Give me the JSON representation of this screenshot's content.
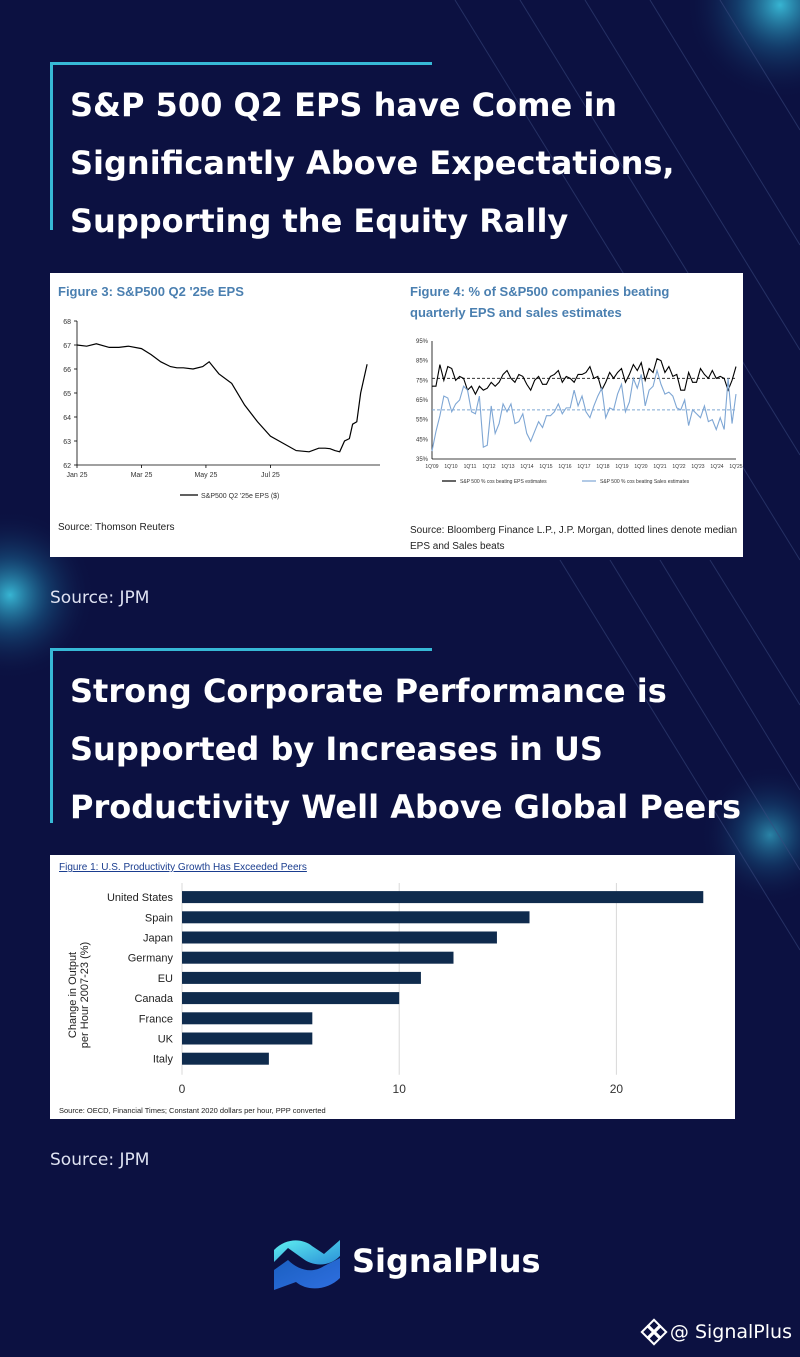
{
  "heading1": {
    "lines": [
      "S&P 500 Q2 EPS have Come in",
      "Significantly Above Expectations,",
      "Supporting the Equity Rally"
    ]
  },
  "heading2": {
    "lines": [
      "Strong Corporate Performance is",
      "Supported by Increases in US",
      "Productivity Well Above Global Peers"
    ]
  },
  "source_note_1": "Source: JPM",
  "source_note_2": "Source: JPM",
  "brand": {
    "name": "SignalPlus",
    "watermark": "@ SignalPlus",
    "accent_color": "#37b9d6",
    "icon": "signalplus-logo-icon",
    "watermark_icon": "binance-square-icon"
  },
  "chart_data": [
    {
      "type": "line",
      "title": "Figure 3: S&P500 Q2 '25e EPS",
      "x_ticks": [
        "Jan 25",
        "Mar 25",
        "May 25",
        "Jul 25"
      ],
      "ylim": [
        62,
        68
      ],
      "y_ticks": [
        "62",
        "63",
        "64",
        "65",
        "66",
        "67",
        "68"
      ],
      "series": [
        {
          "name": "S&P500 Q2 '25e EPS ($)",
          "color": "#000000",
          "x": [
            0,
            0.3,
            0.6,
            1.0,
            1.3,
            1.6,
            2.0,
            2.3,
            2.6,
            2.9,
            3.1,
            3.3,
            3.6,
            3.9,
            4.1,
            4.4,
            4.8,
            5.2,
            5.6,
            6.0,
            6.4,
            6.8,
            7.2,
            7.5,
            7.7,
            7.85,
            8.0,
            8.15,
            8.3,
            8.45,
            8.55,
            8.68,
            8.8,
            9.0
          ],
          "values": [
            67.0,
            66.95,
            67.05,
            66.9,
            66.9,
            66.95,
            66.85,
            66.6,
            66.3,
            66.1,
            66.05,
            66.05,
            66.0,
            66.1,
            66.3,
            65.8,
            65.4,
            64.5,
            63.8,
            63.2,
            62.9,
            62.6,
            62.55,
            62.7,
            62.7,
            62.68,
            62.6,
            62.55,
            63.0,
            63.1,
            63.7,
            63.8,
            65.0,
            66.2
          ]
        }
      ],
      "source": "Source: Thomson Reuters"
    },
    {
      "type": "line",
      "title": "Figure 4: % of S&P500 companies beating quarterly EPS and sales estimates",
      "title_lines": [
        "Figure 4: % of S&P500 companies beating",
        "quarterly EPS and sales estimates"
      ],
      "x_ticks": [
        "1Q'09",
        "1Q'10",
        "1Q'11",
        "1Q'12",
        "1Q'13",
        "1Q'14",
        "1Q'15",
        "1Q'16",
        "1Q'17",
        "1Q'18",
        "1Q'19",
        "1Q'20",
        "1Q'21",
        "1Q'22",
        "1Q'23",
        "1Q'24",
        "1Q'25"
      ],
      "ylim": [
        35,
        95
      ],
      "y_ticks": [
        "35%",
        "45%",
        "55%",
        "65%",
        "75%",
        "85%",
        "95%"
      ],
      "series": [
        {
          "name": "S&P 500 % cos beating EPS estimates",
          "color": "#000000",
          "values": [
            72,
            72,
            83,
            75,
            82,
            81,
            75,
            77,
            76,
            70,
            72,
            68,
            72,
            70,
            71,
            74,
            72,
            74,
            78,
            80,
            76,
            74,
            78,
            77,
            73,
            70,
            75,
            77,
            73,
            73,
            77,
            78,
            80,
            74,
            77,
            76,
            74,
            78,
            78,
            79,
            82,
            76,
            77,
            70,
            74,
            79,
            76,
            79,
            81,
            74,
            78,
            83,
            80,
            84,
            75,
            81,
            79,
            86,
            85,
            79,
            82,
            77,
            78,
            70,
            70,
            79,
            74,
            74,
            81,
            78,
            76,
            80,
            76,
            77,
            76,
            70,
            75,
            82
          ]
        },
        {
          "name": "S&P 500 % cos beating Sales estimates",
          "color": "#7ea6d4",
          "values": [
            39,
            49,
            57,
            67,
            66,
            59,
            63,
            65,
            72,
            70,
            59,
            58,
            67,
            41,
            42,
            62,
            48,
            53,
            63,
            59,
            63,
            53,
            54,
            58,
            48,
            44,
            49,
            54,
            51,
            57,
            57,
            59,
            63,
            58,
            61,
            61,
            70,
            62,
            67,
            59,
            56,
            62,
            67,
            71,
            56,
            61,
            60,
            68,
            73,
            59,
            64,
            76,
            71,
            78,
            62,
            70,
            72,
            80,
            73,
            68,
            69,
            67,
            61,
            60,
            65,
            52,
            60,
            58,
            56,
            62,
            54,
            55,
            50,
            56,
            50,
            76,
            53,
            68
          ]
        }
      ],
      "reference_lines": [
        {
          "value": 76,
          "color": "#333333"
        },
        {
          "value": 60,
          "color": "#7ea6d4"
        }
      ],
      "source": "Source: Bloomberg Finance L.P., J.P. Morgan, dotted lines denote median EPS and Sales beats",
      "source_lines": [
        "Source: Bloomberg Finance L.P., J.P. Morgan, dotted lines denote median",
        "EPS and Sales beats"
      ]
    },
    {
      "type": "bar",
      "orientation": "horizontal",
      "title": "Figure 1: U.S. Productivity Growth Has Exceeded Peers",
      "categories": [
        "United States",
        "Spain",
        "Japan",
        "Germany",
        "EU",
        "Canada",
        "France",
        "UK",
        "Italy"
      ],
      "values": [
        24,
        16,
        14.5,
        12.5,
        11,
        10,
        6,
        6,
        4
      ],
      "xlim": [
        0,
        25
      ],
      "x_ticks": [
        "0",
        "10",
        "20"
      ],
      "ylabel_lines": [
        "Change in Output",
        "per Hour 2007-23 (%)"
      ],
      "ylabel": "Change in Output per Hour 2007-23 (%)",
      "bar_color": "#0f2b4d",
      "grid": true,
      "source": "Source: OECD, Financial Times; Constant 2020 dollars per hour, PPP converted"
    }
  ]
}
